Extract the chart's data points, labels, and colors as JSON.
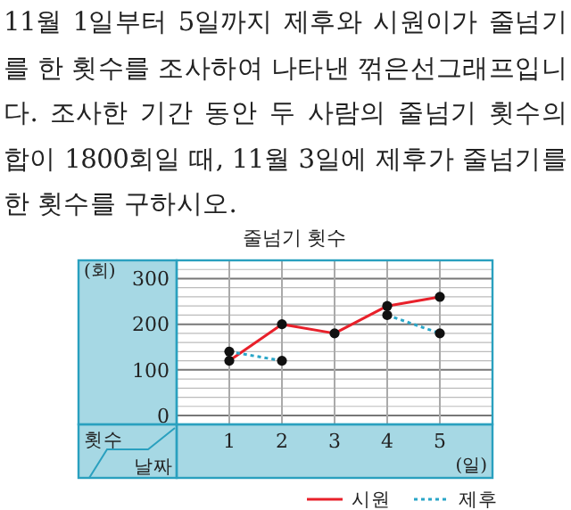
{
  "chart_data": {
    "type": "line",
    "title": "줄넘기 횟수",
    "ylabel": "(회)",
    "xlabel": "(일)",
    "annotations": [
      "11월 1일부터 5일까지 제후와 시원이가 줄넘기를 한 횟수를 조사하여 나타낸 꺾은선그래프입니다. 조사한 기간 동안 두 사람의 줄넘기 횟수의 합이 1800회일 때, 11월 3일에 제후가 줄넘기를 한 횟수를 구하시오.",
      "횟수",
      "날짜"
    ],
    "x": [
      1,
      2,
      3,
      4,
      5
    ],
    "xlim": [
      0,
      6
    ],
    "xticks": [
      1,
      2,
      3,
      4,
      5
    ],
    "ylim": [
      0,
      340
    ],
    "yticks": [
      0,
      {
        "value": 20,
        "label": null
      },
      {
        "value": 40,
        "label": null
      },
      {
        "value": 60,
        "label": null
      },
      {
        "value": 80,
        "label": null
      },
      100,
      {
        "value": 120,
        "label": null
      },
      {
        "value": 140,
        "label": null
      },
      {
        "value": 160,
        "label": null
      },
      {
        "value": 180,
        "label": null
      },
      200,
      {
        "value": 220,
        "label": null
      },
      {
        "value": 240,
        "label": null
      },
      {
        "value": 260,
        "label": null
      },
      {
        "value": 280,
        "label": null
      },
      300,
      {
        "value": 320,
        "label": null
      },
      {
        "value": 340,
        "label": null
      }
    ],
    "series": [
      {
        "name": "시원",
        "color": "#e8202a",
        "line_style": "solid",
        "values": [
          120,
          200,
          180,
          240,
          260
        ]
      },
      {
        "name": "제후",
        "color": "#2aa6c8",
        "line_style": "dotted",
        "values": [
          140,
          120,
          null,
          220,
          180
        ]
      }
    ],
    "grid": true,
    "marker": "circle",
    "legend": "bottom right"
  }
}
